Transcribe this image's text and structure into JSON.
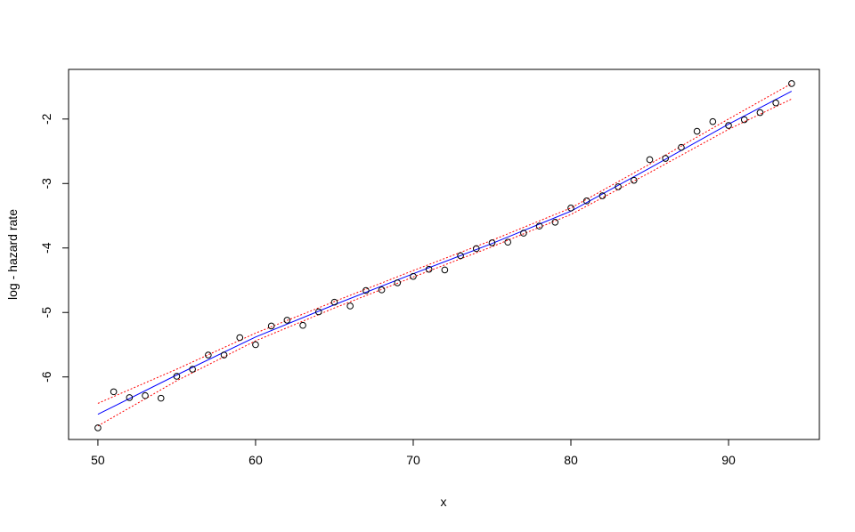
{
  "chart_data": {
    "type": "scatter",
    "title": "",
    "xlabel": "x",
    "ylabel": "log - hazard rate",
    "xlim": [
      48.14,
      95.76
    ],
    "ylim": [
      -6.97,
      -1.23
    ],
    "xticks": [
      50,
      60,
      70,
      80,
      90
    ],
    "yticks": [
      -6,
      -5,
      -4,
      -3,
      -2
    ],
    "grid": false,
    "points": {
      "x": [
        50,
        51,
        52,
        53,
        54,
        55,
        56,
        57,
        58,
        59,
        60,
        61,
        62,
        63,
        64,
        65,
        66,
        67,
        68,
        69,
        70,
        71,
        72,
        73,
        74,
        75,
        76,
        77,
        78,
        79,
        80,
        81,
        82,
        83,
        84,
        85,
        86,
        87,
        88,
        89,
        90,
        91,
        92,
        93,
        94
      ],
      "y": [
        -6.79,
        -6.23,
        -6.32,
        -6.29,
        -6.33,
        -5.99,
        -5.88,
        -5.66,
        -5.66,
        -5.39,
        -5.5,
        -5.21,
        -5.12,
        -5.2,
        -4.99,
        -4.84,
        -4.9,
        -4.66,
        -4.65,
        -4.54,
        -4.44,
        -4.33,
        -4.34,
        -4.12,
        -4.01,
        -3.92,
        -3.91,
        -3.77,
        -3.66,
        -3.6,
        -3.38,
        -3.27,
        -3.19,
        -3.05,
        -2.95,
        -2.63,
        -2.61,
        -2.44,
        -2.19,
        -2.04,
        -2.1,
        -2.01,
        -1.9,
        -1.75,
        -1.45
      ]
    },
    "fit": {
      "color": "#0000ff",
      "x": [
        50,
        55,
        60,
        65,
        70,
        75,
        80,
        85,
        90,
        94
      ],
      "y": [
        -6.58,
        -5.97,
        -5.38,
        -4.88,
        -4.4,
        -3.93,
        -3.43,
        -2.76,
        -2.08,
        -1.57
      ]
    },
    "band": {
      "color": "#ff0000",
      "x": [
        50,
        55,
        60,
        65,
        70,
        75,
        80,
        85,
        90,
        94
      ],
      "upper": [
        -6.41,
        -5.88,
        -5.32,
        -4.83,
        -4.35,
        -3.88,
        -3.38,
        -2.7,
        -2.0,
        -1.45
      ],
      "lower": [
        -6.76,
        -6.06,
        -5.44,
        -4.93,
        -4.45,
        -3.98,
        -3.48,
        -2.83,
        -2.16,
        -1.69
      ]
    }
  }
}
